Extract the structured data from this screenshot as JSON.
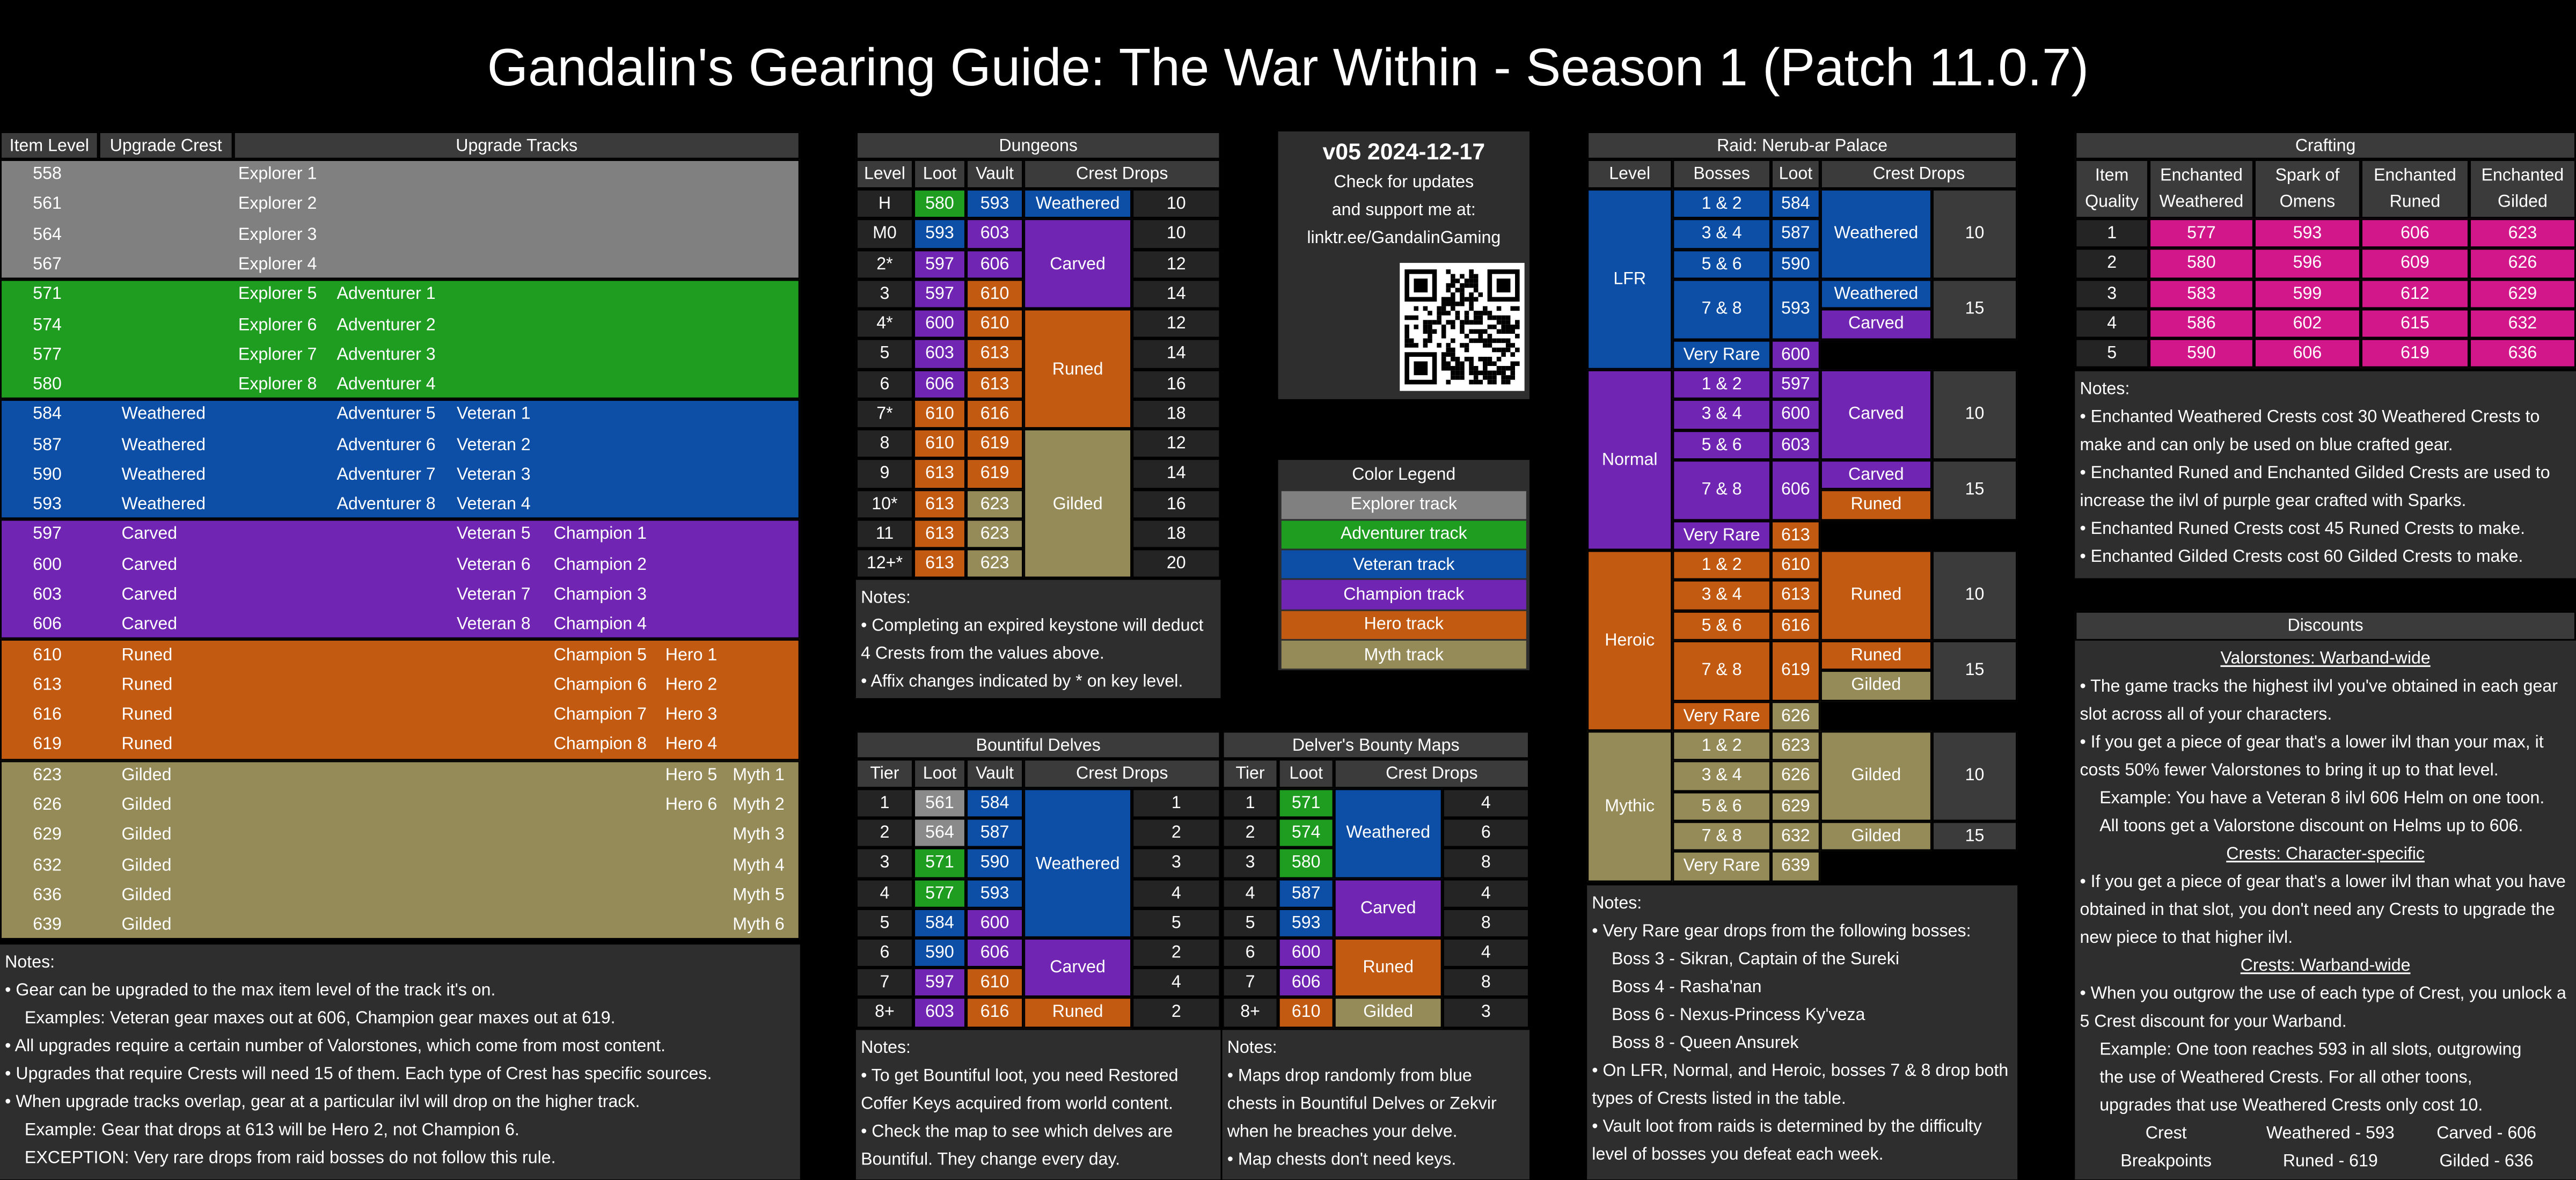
{
  "title": "Gandalin's Gearing Guide: The War Within - Season 1 (Patch 11.0.7)",
  "upgrade_tracks": {
    "headers": [
      "Item Level",
      "Upgrade Crest",
      "Upgrade Tracks"
    ],
    "groups": [
      {
        "color": "#808080",
        "rows": [
          [
            558,
            null,
            [
              "Explorer 1"
            ]
          ],
          [
            561,
            null,
            [
              "Explorer 2"
            ]
          ],
          [
            564,
            null,
            [
              "Explorer 3"
            ]
          ],
          [
            567,
            null,
            [
              "Explorer 4"
            ]
          ]
        ]
      },
      {
        "color": "#1f9d20",
        "rows": [
          [
            571,
            null,
            [
              "Explorer 5",
              "Adventurer 1"
            ]
          ],
          [
            574,
            null,
            [
              "Explorer 6",
              "Adventurer 2"
            ]
          ],
          [
            577,
            null,
            [
              "Explorer 7",
              "Adventurer 3"
            ]
          ],
          [
            580,
            null,
            [
              "Explorer 8",
              "Adventurer 4"
            ]
          ]
        ]
      },
      {
        "color": "#0d4ea6",
        "rows": [
          [
            584,
            "Weathered",
            [
              null,
              "Adventurer 5",
              "Veteran 1"
            ]
          ],
          [
            587,
            "Weathered",
            [
              null,
              "Adventurer 6",
              "Veteran 2"
            ]
          ],
          [
            590,
            "Weathered",
            [
              null,
              "Adventurer 7",
              "Veteran 3"
            ]
          ],
          [
            593,
            "Weathered",
            [
              null,
              "Adventurer 8",
              "Veteran 4"
            ]
          ]
        ]
      },
      {
        "color": "#7126b3",
        "rows": [
          [
            597,
            "Carved",
            [
              null,
              null,
              "Veteran 5",
              "Champion 1"
            ]
          ],
          [
            600,
            "Carved",
            [
              null,
              null,
              "Veteran 6",
              "Champion 2"
            ]
          ],
          [
            603,
            "Carved",
            [
              null,
              null,
              "Veteran 7",
              "Champion 3"
            ]
          ],
          [
            606,
            "Carved",
            [
              null,
              null,
              "Veteran 8",
              "Champion 4"
            ]
          ]
        ]
      },
      {
        "color": "#c35a12",
        "rows": [
          [
            610,
            "Runed",
            [
              null,
              null,
              null,
              "Champion 5",
              "Hero 1"
            ]
          ],
          [
            613,
            "Runed",
            [
              null,
              null,
              null,
              "Champion 6",
              "Hero 2"
            ]
          ],
          [
            616,
            "Runed",
            [
              null,
              null,
              null,
              "Champion 7",
              "Hero 3"
            ]
          ],
          [
            619,
            "Runed",
            [
              null,
              null,
              null,
              "Champion 8",
              "Hero 4"
            ]
          ]
        ]
      },
      {
        "color": "#958b58",
        "rows": [
          [
            623,
            "Gilded",
            [
              null,
              null,
              null,
              null,
              "Hero 5",
              "Myth 1"
            ]
          ],
          [
            626,
            "Gilded",
            [
              null,
              null,
              null,
              null,
              "Hero 6",
              "Myth 2"
            ]
          ],
          [
            629,
            "Gilded",
            [
              null,
              null,
              null,
              null,
              null,
              "Myth 3"
            ]
          ],
          [
            632,
            "Gilded",
            [
              null,
              null,
              null,
              null,
              null,
              "Myth 4"
            ]
          ],
          [
            636,
            "Gilded",
            [
              null,
              null,
              null,
              null,
              null,
              "Myth 5"
            ]
          ],
          [
            639,
            "Gilded",
            [
              null,
              null,
              null,
              null,
              null,
              "Myth 6"
            ]
          ]
        ]
      }
    ],
    "notes": {
      "title": "Notes:",
      "items": [
        {
          "text": "• Gear can be upgraded to the max item level of the track it's on.",
          "sub": [
            "Examples: Veteran gear maxes out at 606, Champion gear maxes out at 619."
          ]
        },
        {
          "text": "• All upgrades require a certain number of Valorstones, which come from most content."
        },
        {
          "text": "• Upgrades that require Crests will need 15 of them. Each type of Crest has specific sources."
        },
        {
          "text": "• When upgrade tracks overlap, gear at a particular ilvl will drop on the higher track.",
          "sub": [
            "Example: Gear that drops at 613 will be Hero 2, not Champion 6.",
            "EXCEPTION: Very rare drops from raid bosses do not follow this rule."
          ]
        }
      ]
    }
  },
  "dungeons": {
    "title": "Dungeons",
    "headers": [
      "Level",
      "Loot",
      "Vault",
      "Crest Drops"
    ],
    "levels": [
      "H",
      "M0",
      "2*",
      3,
      "4*",
      5,
      6,
      "7*",
      8,
      9,
      "10*",
      11,
      "12+*"
    ],
    "loot": [
      580,
      593,
      597,
      597,
      600,
      603,
      606,
      610,
      610,
      613,
      613,
      613,
      613
    ],
    "loot_colors": [
      "#1f9d20",
      "#0d4ea6",
      "#7126b3",
      "#7126b3",
      "#7126b3",
      "#7126b3",
      "#7126b3",
      "#c35a12",
      "#c35a12",
      "#c35a12",
      "#c35a12",
      "#c35a12",
      "#c35a12"
    ],
    "vault": [
      593,
      603,
      606,
      610,
      610,
      613,
      613,
      616,
      619,
      619,
      623,
      623,
      623
    ],
    "vault_colors": [
      "#0d4ea6",
      "#7126b3",
      "#7126b3",
      "#c35a12",
      "#c35a12",
      "#c35a12",
      "#c35a12",
      "#c35a12",
      "#c35a12",
      "#c35a12",
      "#958b58",
      "#958b58",
      "#958b58"
    ],
    "crests": [
      "Weathered",
      "Carved",
      null,
      null,
      "Runed",
      null,
      null,
      null,
      "Gilded",
      null,
      null,
      null,
      null
    ],
    "crest_colors": [
      "#0d4ea6",
      "#7126b3",
      null,
      null,
      "#c35a12",
      null,
      null,
      null,
      "#958b58",
      null,
      null,
      null,
      null
    ],
    "counts": [
      10,
      10,
      12,
      14,
      12,
      14,
      16,
      18,
      12,
      14,
      16,
      18,
      20
    ],
    "notes": {
      "title": "Notes:",
      "items": [
        {
          "text": "• Completing an expired keystone will deduct 4 Crests from the values above."
        },
        {
          "text": "• Affix changes indicated by * on key level."
        }
      ]
    }
  },
  "version": {
    "title": "v05 2024-12-17",
    "lines": [
      "Check for updates",
      "and support me at:",
      "linktr.ee/GandalinGaming"
    ]
  },
  "legend": {
    "title": "Color Legend",
    "items": [
      {
        "label": "Explorer track",
        "color": "#808080"
      },
      {
        "label": "Adventurer track",
        "color": "#1f9d20"
      },
      {
        "label": "Veteran track",
        "color": "#0d4ea6"
      },
      {
        "label": "Champion track",
        "color": "#7126b3"
      },
      {
        "label": "Hero track",
        "color": "#c35a12"
      },
      {
        "label": "Myth track",
        "color": "#958b58"
      }
    ]
  },
  "delves": {
    "title": "Bountiful Delves",
    "headers": [
      "Tier",
      "Loot",
      "Vault",
      "Crest Drops"
    ],
    "tiers": [
      1,
      2,
      3,
      4,
      5,
      6,
      7,
      "8+"
    ],
    "loot": [
      561,
      564,
      571,
      577,
      584,
      590,
      597,
      603
    ],
    "loot_colors": [
      "#8a8a8a",
      "#8a8a8a",
      "#1f9d20",
      "#1f9d20",
      "#0d4ea6",
      "#0d4ea6",
      "#7126b3",
      "#7126b3"
    ],
    "vault": [
      584,
      587,
      590,
      593,
      600,
      606,
      610,
      616
    ],
    "vault_colors": [
      "#0d4ea6",
      "#0d4ea6",
      "#0d4ea6",
      "#0d4ea6",
      "#7126b3",
      "#7126b3",
      "#c35a12",
      "#c35a12"
    ],
    "crests": [
      "Weathered",
      null,
      null,
      null,
      null,
      "Carved",
      null,
      "Runed"
    ],
    "crest_colors": [
      "#0d4ea6",
      null,
      null,
      null,
      null,
      "#7126b3",
      null,
      "#c35a12"
    ],
    "counts": [
      1,
      2,
      3,
      4,
      5,
      2,
      4,
      2
    ],
    "notes": {
      "title": "Notes:",
      "items": [
        {
          "text": "• To get Bountiful loot, you need Restored Coffer Keys acquired from world content."
        },
        {
          "text": "• Check the map to see which delves are Bountiful. They change every day."
        }
      ]
    }
  },
  "maps": {
    "title": "Delver's Bounty Maps",
    "headers": [
      "Tier",
      "Loot",
      "Crest Drops"
    ],
    "tiers": [
      1,
      2,
      3,
      4,
      5,
      6,
      7,
      "8+"
    ],
    "loot": [
      571,
      574,
      580,
      587,
      593,
      600,
      606,
      610
    ],
    "loot_colors": [
      "#1f9d20",
      "#1f9d20",
      "#1f9d20",
      "#0d4ea6",
      "#0d4ea6",
      "#7126b3",
      "#7126b3",
      "#c35a12"
    ],
    "crests": [
      "Weathered",
      null,
      null,
      "Carved",
      null,
      "Runed",
      null,
      "Gilded"
    ],
    "crest_colors": [
      "#0d4ea6",
      null,
      null,
      "#7126b3",
      null,
      "#c35a12",
      null,
      "#958b58"
    ],
    "counts": [
      4,
      6,
      8,
      4,
      8,
      4,
      8,
      3
    ],
    "notes": {
      "title": "Notes:",
      "items": [
        {
          "text": "• Maps drop randomly from blue chests in Bountiful Delves or Zekvir when he breaches your delve."
        },
        {
          "text": "• Map chests don't need keys."
        }
      ]
    }
  },
  "raid": {
    "title": "Raid: Nerub-ar Palace",
    "headers": [
      "Level",
      "Bosses",
      "Loot",
      "Crest Drops"
    ],
    "sections": [
      {
        "level": "LFR",
        "color": "#0d4ea6",
        "bosses": [
          "1 & 2",
          "3 & 4",
          "5 & 6",
          "7 & 8",
          "Very Rare"
        ],
        "loot": [
          584,
          587,
          590,
          593,
          600
        ],
        "loot_colors": [
          "#0d4ea6",
          "#0d4ea6",
          "#0d4ea6",
          "#0d4ea6",
          "#7126b3"
        ],
        "crests": [
          {
            "names": [
              "Weathered"
            ],
            "colors": [
              "#0d4ea6"
            ],
            "count": 10
          },
          {
            "names": [
              "Weathered",
              "Carved"
            ],
            "colors": [
              "#0d4ea6",
              "#7126b3"
            ],
            "count": 15
          }
        ]
      },
      {
        "level": "Normal",
        "color": "#7126b3",
        "bosses": [
          "1 & 2",
          "3 & 4",
          "5 & 6",
          "7 & 8",
          "Very Rare"
        ],
        "loot": [
          597,
          600,
          603,
          606,
          613
        ],
        "loot_colors": [
          "#7126b3",
          "#7126b3",
          "#7126b3",
          "#7126b3",
          "#c35a12"
        ],
        "crests": [
          {
            "names": [
              "Carved"
            ],
            "colors": [
              "#7126b3"
            ],
            "count": 10
          },
          {
            "names": [
              "Carved",
              "Runed"
            ],
            "colors": [
              "#7126b3",
              "#c35a12"
            ],
            "count": 15
          }
        ]
      },
      {
        "level": "Heroic",
        "color": "#c35a12",
        "bosses": [
          "1 & 2",
          "3 & 4",
          "5 & 6",
          "7 & 8",
          "Very Rare"
        ],
        "loot": [
          610,
          613,
          616,
          619,
          626
        ],
        "loot_colors": [
          "#c35a12",
          "#c35a12",
          "#c35a12",
          "#c35a12",
          "#958b58"
        ],
        "crests": [
          {
            "names": [
              "Runed"
            ],
            "colors": [
              "#c35a12"
            ],
            "count": 10
          },
          {
            "names": [
              "Runed",
              "Gilded"
            ],
            "colors": [
              "#c35a12",
              "#958b58"
            ],
            "count": 15
          }
        ]
      },
      {
        "level": "Mythic",
        "color": "#958b58",
        "bosses": [
          "1 & 2",
          "3 & 4",
          "5 & 6",
          "7 & 8",
          "Very Rare"
        ],
        "loot": [
          623,
          626,
          629,
          632,
          639
        ],
        "loot_colors": [
          "#958b58",
          "#958b58",
          "#958b58",
          "#958b58",
          "#958b58"
        ],
        "crests": [
          {
            "names": [
              "Gilded"
            ],
            "colors": [
              "#958b58"
            ],
            "count": 10
          },
          {
            "names": [
              "Gilded"
            ],
            "colors": [
              "#958b58"
            ],
            "count": 15
          }
        ]
      }
    ],
    "notes": {
      "title": "Notes:",
      "items": [
        {
          "text": "• Very Rare gear drops from the following bosses:",
          "sub": [
            "Boss 3 - Sikran, Captain of the Sureki",
            "Boss 4 - Rasha'nan",
            "Boss 6 - Nexus-Princess Ky'veza",
            "Boss 8 - Queen Ansurek"
          ]
        },
        {
          "text": "• On LFR, Normal, and Heroic, bosses 7 & 8 drop both types of Crests listed in the table."
        },
        {
          "text": "• Vault loot from raids is determined by the difficulty level of bosses you defeat each week."
        }
      ]
    }
  },
  "crafting": {
    "title": "Crafting",
    "color": "#d1178a",
    "headers": [
      [
        "Item",
        "Quality"
      ],
      [
        "Enchanted",
        "Weathered"
      ],
      [
        "Spark of",
        "Omens"
      ],
      [
        "Enchanted",
        "Runed"
      ],
      [
        "Enchanted",
        "Gilded"
      ]
    ],
    "rows": [
      [
        1,
        577,
        593,
        606,
        623
      ],
      [
        2,
        580,
        596,
        609,
        626
      ],
      [
        3,
        583,
        599,
        612,
        629
      ],
      [
        4,
        586,
        602,
        615,
        632
      ],
      [
        5,
        590,
        606,
        619,
        636
      ]
    ],
    "notes": {
      "title": "Notes:",
      "items": [
        {
          "text": "• Enchanted Weathered Crests cost 30 Weathered Crests to make and can only be used on blue crafted gear."
        },
        {
          "text": "• Enchanted Runed and Enchanted Gilded Crests are used to increase the ilvl of purple gear crafted with Sparks."
        },
        {
          "text": "• Enchanted Runed Crests cost 45 Runed Crests to make."
        },
        {
          "text": "• Enchanted Gilded Crests cost 60 Gilded Crests to make."
        }
      ]
    }
  },
  "discounts": {
    "title": "Discounts",
    "sections": [
      {
        "heading": "Valorstones: Warband-wide",
        "items": [
          {
            "text": "• The game tracks the highest ilvl you've obtained in each gear slot across all of your characters."
          },
          {
            "text": "• If you get a piece of gear that's a lower ilvl than your max, it costs 50% fewer Valorstones to bring it up to that level.",
            "sub": [
              "Example: You have a Veteran 8 ilvl 606 Helm on one toon.",
              "All toons get a Valorstone discount on Helms up to 606."
            ]
          }
        ]
      },
      {
        "heading": "Crests: Character-specific",
        "items": [
          {
            "text": "• If you get a piece of gear that's a lower ilvl than what you have obtained in that slot, you don't need any Crests to upgrade the new piece to that higher ilvl."
          }
        ]
      },
      {
        "heading": "Crests: Warband-wide",
        "items": [
          {
            "text": "• When you outgrow the use of each type of Crest, you unlock a 5 Crest discount for your Warband.",
            "sub": [
              "Example: One toon reaches 593 in all slots, outgrowing",
              "the use of Weathered Crests. For all other toons,",
              "upgrades that use Weathered Crests only cost 10."
            ]
          }
        ]
      }
    ],
    "breakpoints": {
      "label": [
        "Crest",
        "Breakpoints"
      ],
      "values": [
        "Weathered - 593",
        "Carved - 606",
        "Runed - 619",
        "Gilded - 636"
      ]
    }
  }
}
